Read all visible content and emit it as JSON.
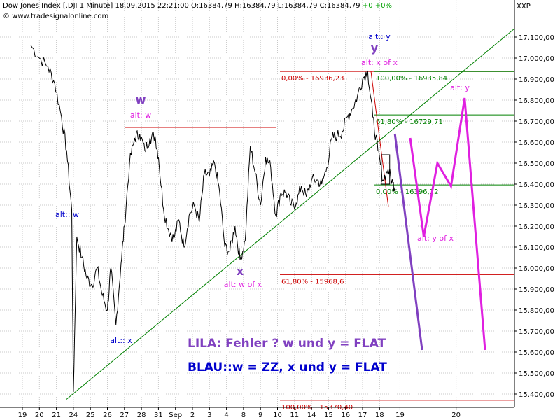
{
  "header": {
    "instrument": "Dow Jones Index [.DJI  1 Minute]",
    "datetime": "18.09.2015 22:21:00",
    "ohlc": "O:16384,79 H:16384,79 L:16384,79 C:16384,79",
    "change": "+0 +0%",
    "copyright": "© www.tradesignalonline.com",
    "symbol": "XXP"
  },
  "colors": {
    "price": "#000000",
    "grid": "#c8c8c8",
    "support_line": "#008000",
    "red_level": "#cc0000",
    "green_level": "#008000",
    "magenta": "#e020e0",
    "purple": "#8040c0",
    "blue": "#0000cc"
  },
  "chart_data": {
    "type": "line",
    "ylim": [
      15370,
      17180
    ],
    "y_ticks": [
      "17.100,00",
      "17.000,00",
      "16.900,00",
      "16.800,00",
      "16.700,00",
      "16.600,00",
      "16.500,00",
      "16.400,00",
      "16.300,00",
      "16.200,00",
      "16.100,00",
      "16.000,00",
      "15.900,00",
      "15.800,00",
      "15.700,00",
      "15.600,00",
      "15.500,00",
      "15.400,00"
    ],
    "y_tick_values": [
      17100,
      17000,
      16900,
      16800,
      16700,
      16600,
      16500,
      16400,
      16300,
      16200,
      16100,
      16000,
      15900,
      15800,
      15700,
      15600,
      15500,
      15400
    ],
    "x_ticks": [
      "19",
      "20",
      "21",
      "24",
      "25",
      "26",
      "27",
      "28",
      "31",
      "Sep",
      "2",
      "3",
      "4",
      "8",
      "9",
      "10",
      "11",
      "14",
      "15",
      "16",
      "17",
      "18",
      "19",
      "20"
    ],
    "x_tick_index": [
      0,
      1,
      2,
      3,
      4,
      5,
      6,
      7,
      8,
      9,
      10,
      11,
      12,
      13,
      14,
      15,
      16,
      17,
      18,
      19,
      20,
      21,
      22.2,
      25.5
    ],
    "x_range": [
      -0.9,
      31.0
    ],
    "series": [
      {
        "x": [
          0.5,
          1.0,
          1.5,
          1.9,
          2.3,
          2.6,
          2.9,
          3.0,
          3.2,
          3.5,
          3.8,
          4.1,
          4.4,
          4.7,
          5.0,
          5.2,
          5.5,
          5.8,
          6.0,
          6.3,
          6.6,
          6.9,
          7.2,
          7.5,
          7.8,
          8.0,
          8.3,
          8.6,
          8.9,
          9.2,
          9.5,
          9.8,
          10.1,
          10.4,
          10.7,
          11.0,
          11.3,
          11.6,
          11.9,
          12.2,
          12.5,
          12.8,
          13.1,
          13.4,
          13.7,
          14.0,
          14.3,
          14.6,
          14.9,
          15.2,
          15.5,
          15.8,
          16.1,
          16.4,
          16.7,
          17.0,
          17.3,
          17.6,
          17.9,
          18.2,
          18.5,
          18.8,
          19.1,
          19.4,
          19.7,
          20.0,
          20.3,
          20.6,
          20.9,
          21.2,
          21.5,
          21.8,
          21.9
        ],
        "values": [
          17060,
          17000,
          16960,
          16880,
          16720,
          16560,
          16280,
          15410,
          16150,
          16050,
          15950,
          15920,
          16000,
          15870,
          15800,
          16000,
          15730,
          16020,
          16200,
          16500,
          16620,
          16640,
          16560,
          16620,
          16630,
          16530,
          16280,
          16180,
          16140,
          16230,
          16100,
          16250,
          16300,
          16220,
          16450,
          16440,
          16500,
          16360,
          16100,
          16080,
          16200,
          16040,
          16130,
          16580,
          16450,
          16300,
          16530,
          16480,
          16250,
          16360,
          16360,
          16300,
          16310,
          16390,
          16340,
          16420,
          16420,
          16400,
          16480,
          16620,
          16630,
          16650,
          16720,
          16760,
          16820,
          16900,
          16940,
          16720,
          16560,
          16420,
          16470,
          16400,
          16385
        ]
      }
    ],
    "horizontal_levels": [
      {
        "label": "0,00% - 16936,23",
        "value": 16936.23,
        "color": "red_level"
      },
      {
        "label": "100,00% - 16935,84",
        "value": 16935.84,
        "color": "green_level"
      },
      {
        "label": "61,80% - 16729,71",
        "value": 16729.71,
        "color": "green_level"
      },
      {
        "label": "0,00% - 16396,22",
        "value": 16396.22,
        "color": "green_level"
      },
      {
        "label": "61,80% - 15968,6",
        "value": 15968.6,
        "color": "red_level"
      },
      {
        "label": "100,00% - 15370,40",
        "value": 15370.4,
        "color": "red_level"
      }
    ],
    "w_level": {
      "value": 16670
    },
    "annotations": [
      {
        "text": "w",
        "color": "purple",
        "size": 16
      },
      {
        "text": "alt: w",
        "color": "magenta",
        "size": 11
      },
      {
        "text": "alt:: y",
        "color": "blue",
        "size": 11
      },
      {
        "text": "y",
        "color": "purple",
        "size": 16
      },
      {
        "text": "alt: x of x",
        "color": "magenta",
        "size": 11
      },
      {
        "text": "alt: y",
        "color": "magenta",
        "size": 11
      },
      {
        "text": "alt:: w",
        "color": "blue",
        "size": 11
      },
      {
        "text": "x",
        "color": "purple",
        "size": 16
      },
      {
        "text": "alt: w of x",
        "color": "magenta",
        "size": 11
      },
      {
        "text": "alt:: x",
        "color": "blue",
        "size": 11
      },
      {
        "text": "alt: y of x",
        "color": "magenta",
        "size": 11
      }
    ],
    "legend_lines": [
      {
        "text": "LILA:  Fehler ? w und y  = FLAT",
        "color": "purple"
      },
      {
        "text": "BLAU::w = ZZ, x und y = FLAT",
        "color": "blue"
      }
    ],
    "projection_purple": {
      "x": [
        21.9,
        23.5
      ],
      "values": [
        16640,
        15610
      ]
    },
    "projection_magenta": {
      "x": [
        22.8,
        23.6,
        24.4,
        25.2,
        26.0,
        27.2
      ],
      "values": [
        16620,
        16150,
        16500,
        16390,
        16810,
        15610
      ]
    }
  }
}
